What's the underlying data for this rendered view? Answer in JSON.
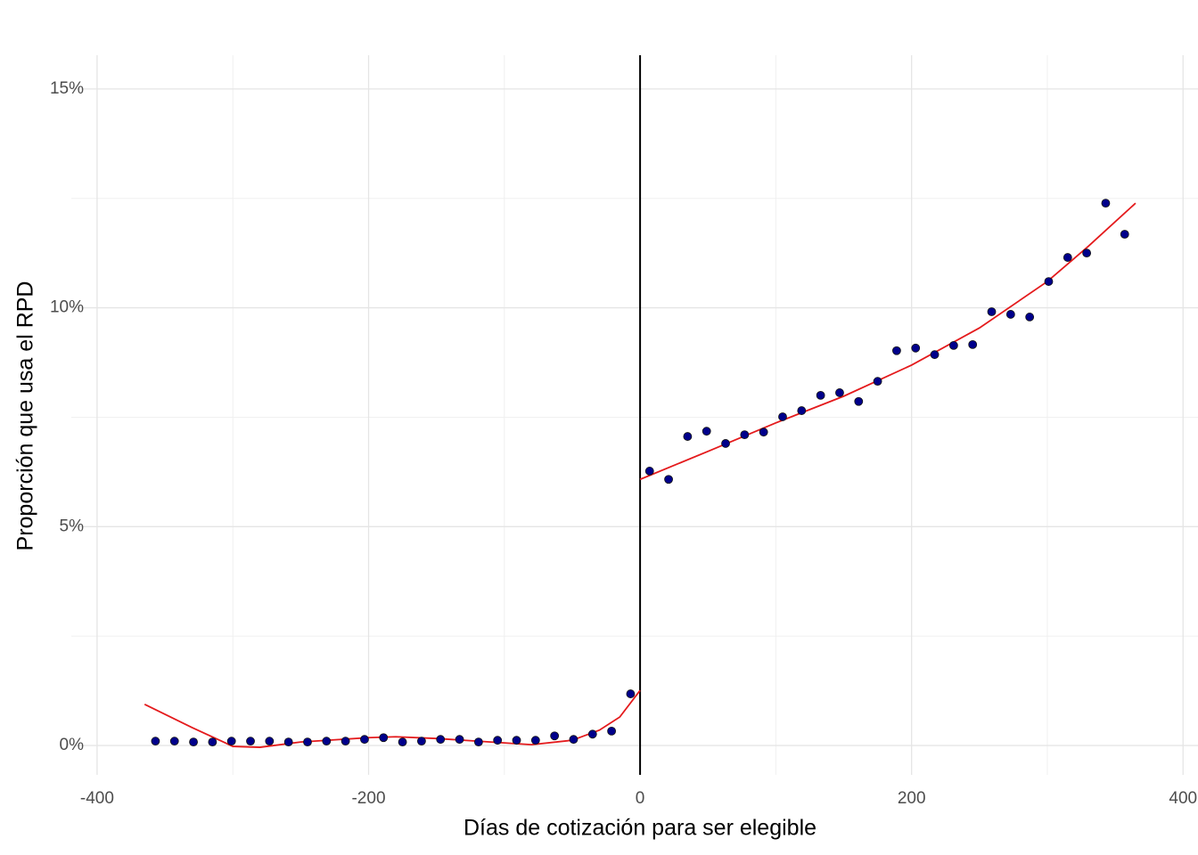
{
  "chart_data": {
    "type": "scatter",
    "xlabel": "Días de cotización para ser elegible",
    "ylabel": "Proporción que usa el RPD",
    "xlim": [
      -419,
      411
    ],
    "ylim": [
      -0.67,
      15.77
    ],
    "xticks": [
      -400,
      -200,
      0,
      200,
      400
    ],
    "xminor": [
      -300,
      -100,
      100,
      300
    ],
    "yticks": [
      {
        "value": 0,
        "label": "0%"
      },
      {
        "value": 5,
        "label": "5%"
      },
      {
        "value": 10,
        "label": "10%"
      },
      {
        "value": 15,
        "label": "15%"
      }
    ],
    "yminor": [
      2.5,
      7.5,
      12.5
    ],
    "grid": true,
    "vline": 0,
    "series": [
      {
        "mode": "markers",
        "color": "#00008b",
        "x": [
          -357,
          -343,
          -329,
          -315,
          -301,
          -287,
          -273,
          -259,
          -245,
          -231,
          -217,
          -203,
          -189,
          -175,
          -161,
          -147,
          -133,
          -119,
          -105,
          -91,
          -77,
          -63,
          -49,
          -35,
          -21,
          -7
        ],
        "values": [
          0.1,
          0.1,
          0.08,
          0.08,
          0.1,
          0.1,
          0.1,
          0.08,
          0.08,
          0.1,
          0.1,
          0.14,
          0.18,
          0.08,
          0.1,
          0.14,
          0.14,
          0.08,
          0.12,
          0.12,
          0.12,
          0.22,
          0.14,
          0.26,
          0.33,
          1.18
        ]
      },
      {
        "mode": "markers",
        "color": "#00008b",
        "x": [
          7,
          21,
          35,
          49,
          63,
          77,
          91,
          105,
          119,
          133,
          147,
          161,
          175,
          189,
          203,
          217,
          231,
          245,
          259,
          273,
          287,
          301,
          315,
          329,
          343,
          357
        ],
        "values": [
          6.27,
          6.08,
          7.06,
          7.18,
          6.9,
          7.1,
          7.16,
          7.51,
          7.65,
          8.0,
          8.06,
          7.86,
          8.32,
          9.02,
          9.08,
          8.93,
          9.14,
          9.16,
          9.91,
          9.85,
          9.79,
          10.6,
          11.15,
          11.25,
          12.39,
          11.68
        ]
      },
      {
        "mode": "line",
        "color": "#e41a1c",
        "x": [
          -365,
          -330,
          -300,
          -280,
          -250,
          -200,
          -180,
          -150,
          -100,
          -80,
          -50,
          -30,
          -15,
          0
        ],
        "values": [
          0.94,
          0.41,
          -0.02,
          -0.04,
          0.08,
          0.18,
          0.2,
          0.16,
          0.06,
          0.02,
          0.12,
          0.35,
          0.65,
          1.26
        ]
      },
      {
        "mode": "line",
        "color": "#e41a1c",
        "x": [
          0,
          50,
          100,
          150,
          200,
          250,
          300,
          330,
          365
        ],
        "values": [
          6.08,
          6.72,
          7.37,
          7.98,
          8.69,
          9.54,
          10.6,
          11.4,
          12.39
        ]
      }
    ]
  }
}
